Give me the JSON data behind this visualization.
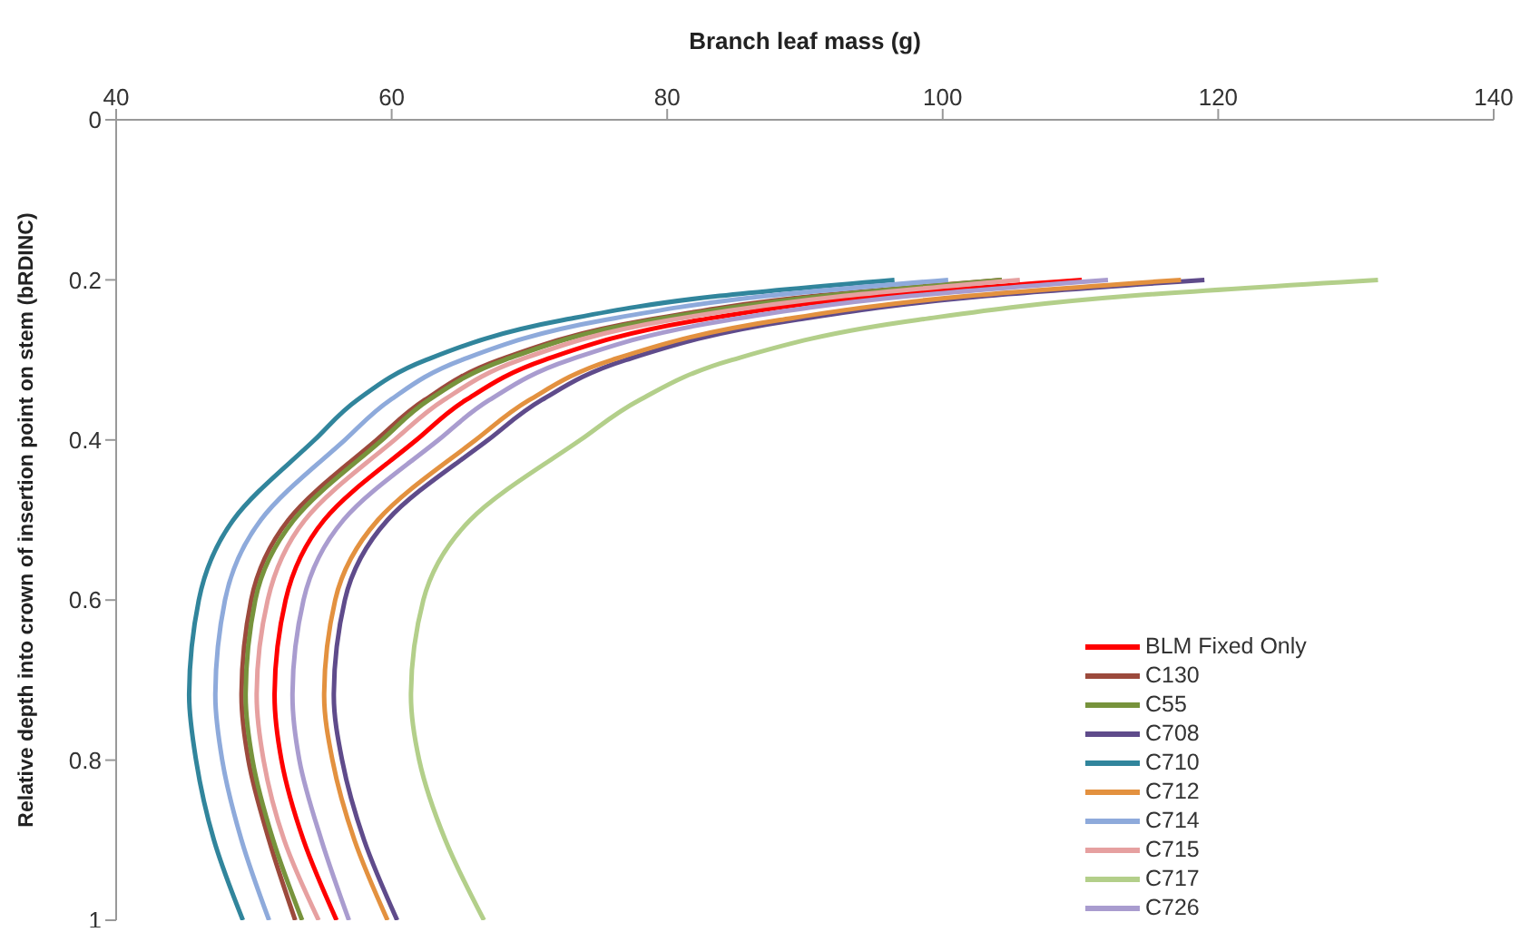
{
  "chart_data": {
    "type": "line",
    "xlabel": "Branch leaf mass (g)",
    "ylabel": "Relative depth into crown of insertion point on stem (bRDINC)",
    "xlim": [
      40,
      140
    ],
    "xticks": [
      40,
      60,
      80,
      100,
      120,
      140
    ],
    "ylim": [
      1,
      0
    ],
    "yticks": [
      0,
      0.2,
      0.4,
      0.6,
      0.8,
      1
    ],
    "grid": false,
    "legend": "right",
    "marker": "none",
    "line_style": "solid",
    "series": [
      {
        "name": "BLM Fixed Only",
        "color": "#ff0000",
        "x": [
          110.1,
          95.3,
          82.4,
          71.1,
          65.4,
          61.8,
          55.1,
          52.3,
          51.5,
          52.0,
          53.6,
          56.0
        ],
        "values": [
          0.2,
          0.22,
          0.25,
          0.3,
          0.35,
          0.4,
          0.5,
          0.6,
          0.72,
          0.8,
          0.9,
          1
        ]
      },
      {
        "name": "C130",
        "color": "#9c4a3c",
        "x": [
          104.3,
          90.8,
          78.6,
          67.8,
          62.4,
          58.9,
          52.5,
          49.8,
          49.1,
          49.6,
          51.1,
          53.0
        ],
        "values": [
          0.2,
          0.22,
          0.25,
          0.3,
          0.35,
          0.4,
          0.5,
          0.6,
          0.72,
          0.8,
          0.9,
          1
        ]
      },
      {
        "name": "C55",
        "color": "#77933c",
        "x": [
          104.3,
          91.4,
          79.0,
          68.2,
          62.7,
          59.3,
          52.9,
          50.1,
          49.4,
          49.9,
          51.4,
          53.5
        ],
        "values": [
          0.2,
          0.22,
          0.25,
          0.3,
          0.35,
          0.4,
          0.5,
          0.6,
          0.72,
          0.8,
          0.9,
          1
        ]
      },
      {
        "name": "C708",
        "color": "#5f4b8b",
        "x": [
          119,
          103.2,
          89.3,
          77.0,
          70.9,
          67.0,
          59.7,
          56.6,
          55.8,
          56.4,
          58.0,
          60.4
        ],
        "values": [
          0.2,
          0.22,
          0.25,
          0.3,
          0.35,
          0.4,
          0.5,
          0.6,
          0.72,
          0.8,
          0.9,
          1
        ]
      },
      {
        "name": "C710",
        "color": "#31859c",
        "x": [
          96.5,
          83.8,
          72.5,
          62.5,
          57.5,
          54.4,
          48.5,
          46.0,
          45.3,
          45.8,
          47.1,
          49.2
        ],
        "values": [
          0.2,
          0.22,
          0.25,
          0.3,
          0.35,
          0.4,
          0.5,
          0.6,
          0.72,
          0.8,
          0.9,
          1
        ]
      },
      {
        "name": "C712",
        "color": "#e3913f",
        "x": [
          117.3,
          101.9,
          88.2,
          76.0,
          70.0,
          66.1,
          59.0,
          55.9,
          55.1,
          55.7,
          57.3,
          59.7
        ],
        "values": [
          0.2,
          0.22,
          0.25,
          0.3,
          0.35,
          0.4,
          0.5,
          0.6,
          0.72,
          0.8,
          0.9,
          1
        ]
      },
      {
        "name": "C714",
        "color": "#8eaadb",
        "x": [
          100.4,
          87.3,
          75.5,
          65.1,
          59.9,
          56.6,
          50.5,
          47.9,
          47.2,
          47.7,
          49.1,
          51.1
        ],
        "values": [
          0.2,
          0.22,
          0.25,
          0.3,
          0.35,
          0.4,
          0.5,
          0.6,
          0.72,
          0.8,
          0.9,
          1
        ]
      },
      {
        "name": "C715",
        "color": "#e6a0a0",
        "x": [
          105.6,
          92.9,
          80.3,
          69.3,
          63.8,
          60.2,
          53.7,
          51.0,
          50.2,
          50.7,
          52.2,
          54.7
        ],
        "values": [
          0.2,
          0.22,
          0.25,
          0.3,
          0.35,
          0.4,
          0.5,
          0.6,
          0.72,
          0.8,
          0.9,
          1
        ]
      },
      {
        "name": "C717",
        "color": "#b3cf8a",
        "x": [
          131.6,
          113.6,
          98.2,
          84.7,
          78.0,
          73.7,
          65.7,
          62.3,
          61.4,
          62.0,
          63.9,
          66.7
        ],
        "values": [
          0.2,
          0.22,
          0.25,
          0.3,
          0.35,
          0.4,
          0.5,
          0.6,
          0.72,
          0.8,
          0.9,
          1
        ]
      },
      {
        "name": "C726",
        "color": "#a99ccf",
        "x": [
          112,
          97.7,
          84.5,
          72.9,
          67.1,
          63.4,
          56.5,
          53.6,
          52.8,
          53.3,
          54.9,
          56.9
        ],
        "values": [
          0.2,
          0.22,
          0.25,
          0.3,
          0.35,
          0.4,
          0.5,
          0.6,
          0.72,
          0.8,
          0.9,
          1
        ]
      }
    ]
  }
}
